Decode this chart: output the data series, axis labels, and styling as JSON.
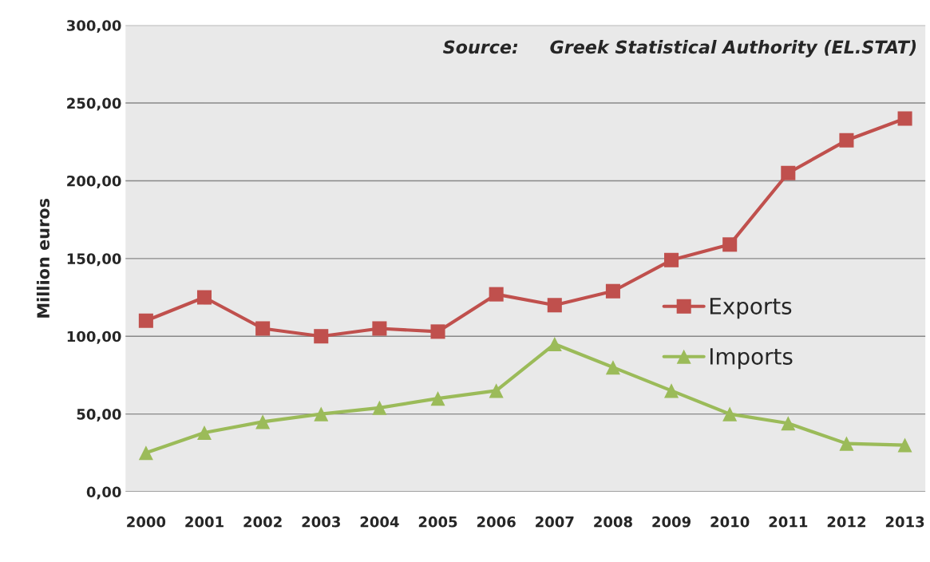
{
  "chart_data": {
    "type": "line",
    "ylabel": "Million euros",
    "categories": [
      "2000",
      "2001",
      "2002",
      "2003",
      "2004",
      "2005",
      "2006",
      "2007",
      "2008",
      "2009",
      "2010",
      "2011",
      "2012",
      "2013"
    ],
    "series": [
      {
        "name": "Exports",
        "color": "#c0504d",
        "marker": "square",
        "values": [
          110,
          125,
          105,
          100,
          105,
          103,
          127,
          120,
          129,
          149,
          159,
          205,
          226,
          240
        ]
      },
      {
        "name": "Imports",
        "color": "#9bbb59",
        "marker": "triangle",
        "values": [
          25,
          38,
          45,
          50,
          54,
          60,
          65,
          95,
          80,
          65,
          50,
          44,
          31,
          30
        ]
      }
    ],
    "ylim": [
      0,
      300
    ],
    "yticks": [
      {
        "value": 0,
        "label": "0,00"
      },
      {
        "value": 50,
        "label": "50,00"
      },
      {
        "value": 100,
        "label": "100,00"
      },
      {
        "value": 150,
        "label": "150,00"
      },
      {
        "value": 200,
        "label": "200,00"
      },
      {
        "value": 250,
        "label": "250,00"
      },
      {
        "value": 300,
        "label": "300,00"
      }
    ],
    "grid": "y",
    "legend": "right",
    "line_style": "solid",
    "annotations": [
      "Source:     Greek Statistical Authority (EL.STAT)"
    ]
  }
}
